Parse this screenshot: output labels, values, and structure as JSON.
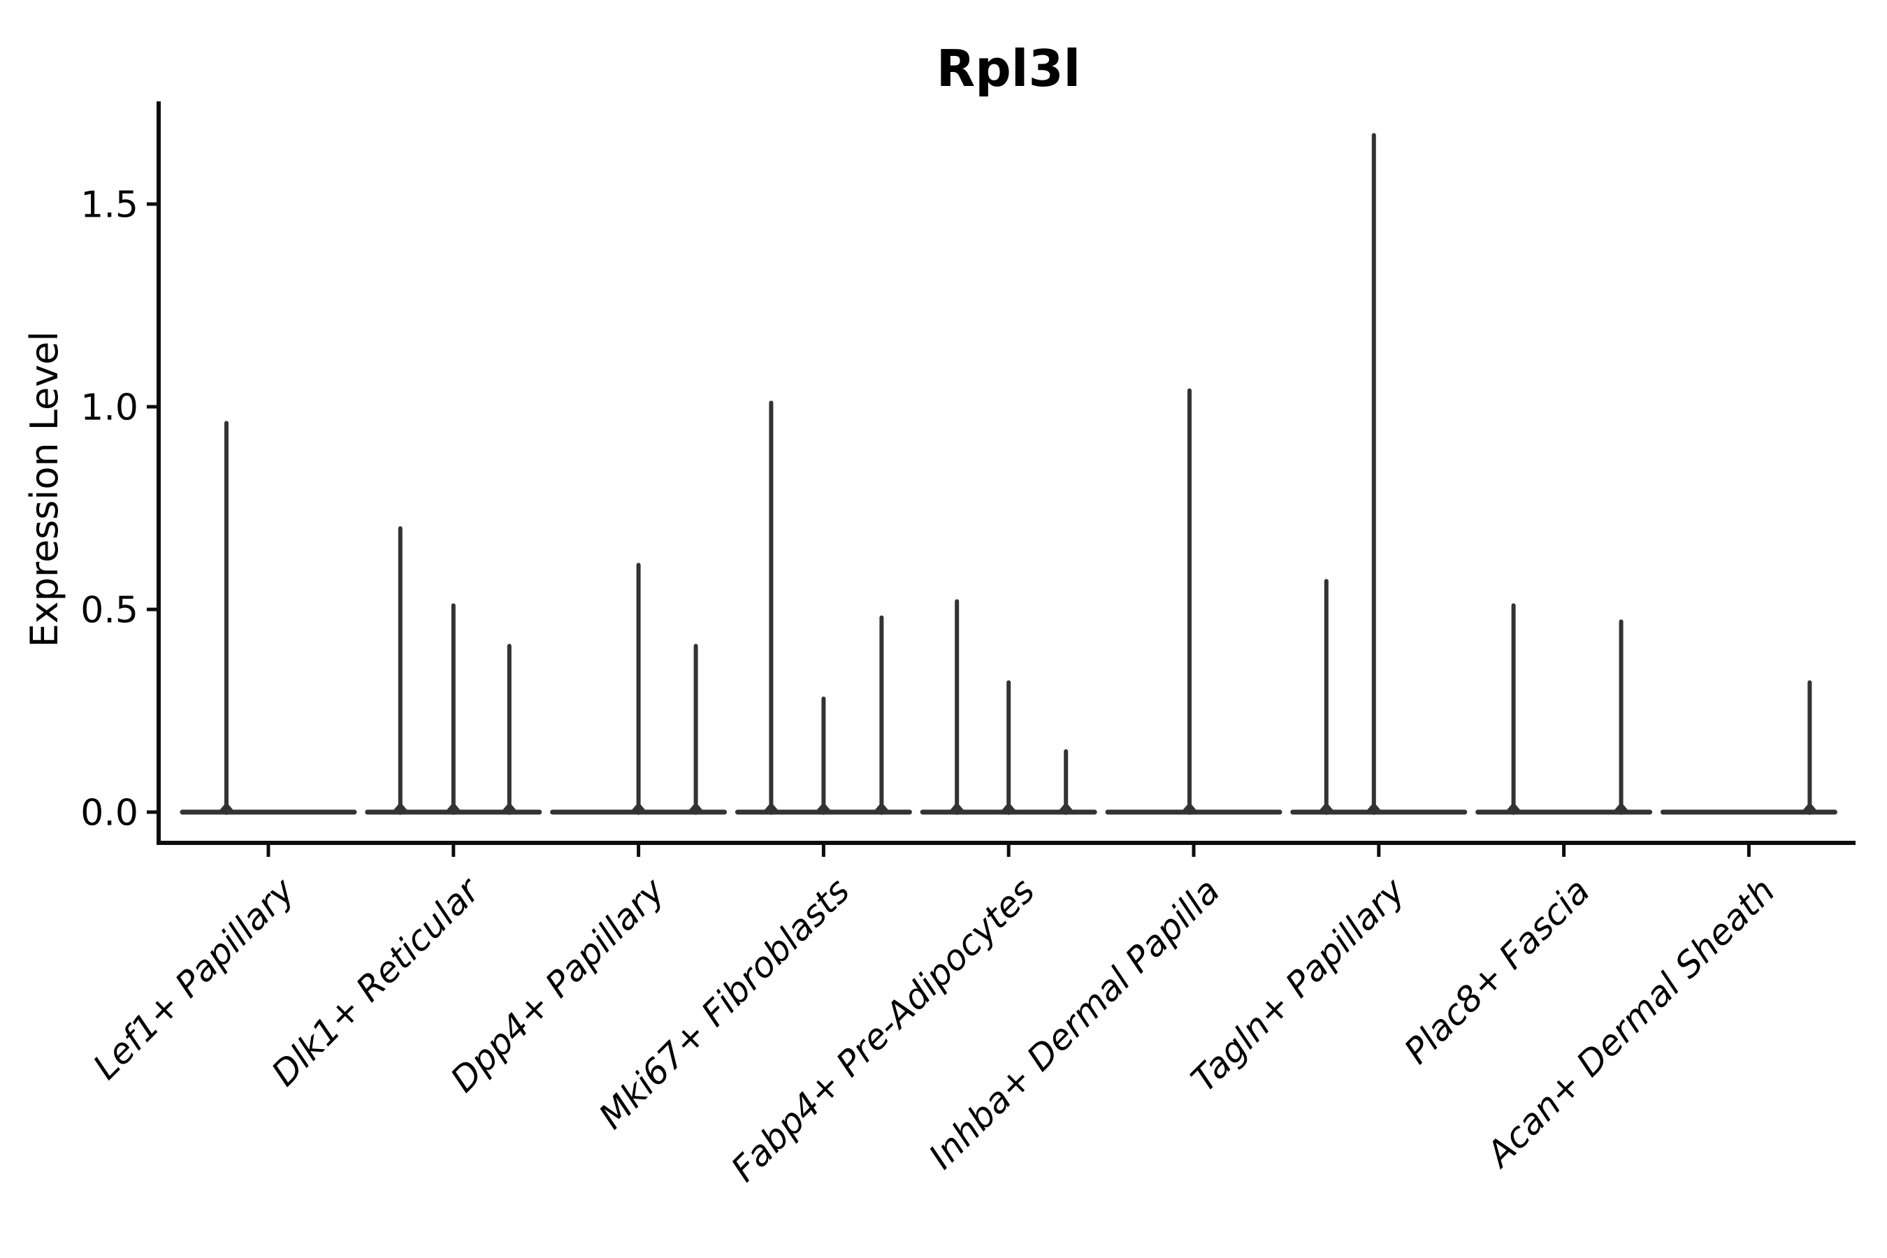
{
  "chart_data": {
    "type": "violin",
    "title": "Rpl3l",
    "ylabel": "Expression Level",
    "xlabel": "",
    "grid": false,
    "legend": null,
    "background_color": "#ffffff",
    "violin_color": "#333333",
    "axis_color": "#0d0d0d",
    "ylim": [
      -0.08,
      1.76
    ],
    "yticks": [
      {
        "value": 0.0,
        "label": "0.0"
      },
      {
        "value": 0.5,
        "label": "0.5"
      },
      {
        "value": 1.0,
        "label": "1.0"
      },
      {
        "value": 1.5,
        "label": "1.5"
      }
    ],
    "categories": [
      "Lef1+ Papillary",
      "Dlk1+ Reticular",
      "Dpp4+ Papillary",
      "Mki67+ Fibroblasts",
      "Fabp4+ Pre-Adipocytes",
      "Inhba+ Dermal Papilla",
      "Tagln+ Papillary",
      "Plac8+ Fascia",
      "Acan+ Dermal Sheath"
    ],
    "violins": [
      {
        "category": "Lef1+ Papillary",
        "spikes": [
          {
            "offset": -60,
            "max": 0.96
          }
        ]
      },
      {
        "category": "Dlk1+ Reticular",
        "spikes": [
          {
            "offset": -76,
            "max": 0.7
          },
          {
            "offset": 0,
            "max": 0.51
          },
          {
            "offset": 80,
            "max": 0.41
          }
        ]
      },
      {
        "category": "Dpp4+ Papillary",
        "spikes": [
          {
            "offset": 0,
            "max": 0.61
          },
          {
            "offset": 82,
            "max": 0.41
          }
        ]
      },
      {
        "category": "Mki67+ Fibroblasts",
        "spikes": [
          {
            "offset": -75,
            "max": 1.01
          },
          {
            "offset": 0,
            "max": 0.28
          },
          {
            "offset": 83,
            "max": 0.48
          }
        ]
      },
      {
        "category": "Fabp4+ Pre-Adipocytes",
        "spikes": [
          {
            "offset": -74,
            "max": 0.52
          },
          {
            "offset": 0,
            "max": 0.32
          },
          {
            "offset": 82,
            "max": 0.15
          }
        ]
      },
      {
        "category": "Inhba+ Dermal Papilla",
        "spikes": [
          {
            "offset": -6,
            "max": 1.04
          }
        ]
      },
      {
        "category": "Tagln+ Papillary",
        "spikes": [
          {
            "offset": -75,
            "max": 0.57
          },
          {
            "offset": -7,
            "max": 1.67
          }
        ]
      },
      {
        "category": "Plac8+ Fascia",
        "spikes": [
          {
            "offset": -72,
            "max": 0.51
          },
          {
            "offset": 82,
            "max": 0.47
          }
        ]
      },
      {
        "category": "Acan+ Dermal Sheath",
        "spikes": [
          {
            "offset": 87,
            "max": 0.32
          }
        ]
      }
    ]
  }
}
